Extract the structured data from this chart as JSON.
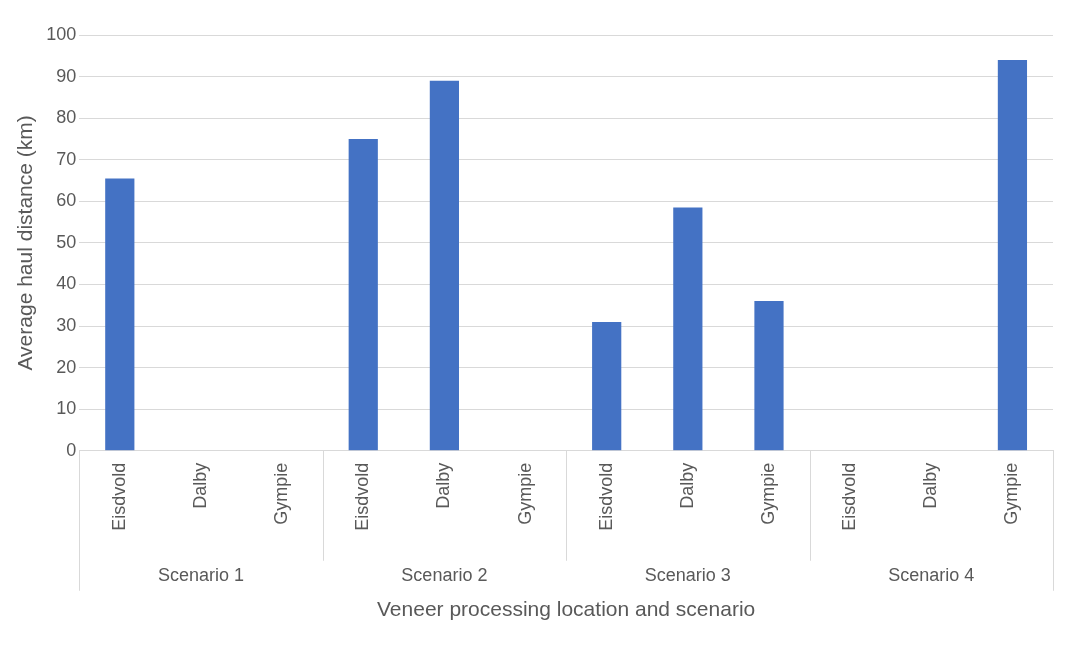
{
  "chart_data": {
    "type": "bar",
    "xlabel": "Veneer processing location and scenario",
    "ylabel": "Average haul distance (km)",
    "categories": [
      "Eisdvold",
      "Dalby",
      "Gympie",
      "Eisdvold",
      "Dalby",
      "Gympie",
      "Eisdvold",
      "Dalby",
      "Gympie",
      "Eisdvold",
      "Dalby",
      "Gympie"
    ],
    "values": [
      65.5,
      null,
      null,
      75,
      89,
      null,
      31,
      58.5,
      36,
      null,
      null,
      94
    ],
    "color": "#4472c4",
    "ylim": [
      0,
      100
    ],
    "yticks": [
      0,
      10,
      20,
      30,
      40,
      50,
      60,
      70,
      80,
      90,
      100
    ],
    "grid": "y",
    "legend": false,
    "annotations": [
      "Scenario 1",
      "Scenario 2",
      "Scenario 3",
      "Scenario 4"
    ]
  }
}
